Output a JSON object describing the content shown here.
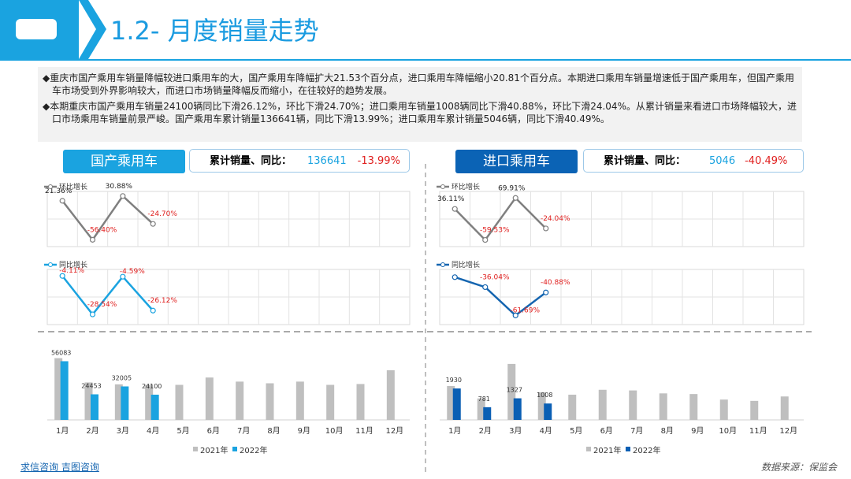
{
  "header": {
    "title": "1.2- 月度销量走势"
  },
  "bullets": [
    "重庆市国产乘用车销量降幅较进口乘用车的大，国产乘用车降幅扩大21.53个百分点，进口乘用车降幅缩小20.81个百分点。本期进口乘用车销量增速低于国产乘用车，但国产乘用车市场受到外界影响较大，而进口市场销量降幅反而缩小，在往较好的趋势发展。",
    "本期重庆市国产乘用车销量24100辆同比下滑26.12%，环比下滑24.70%；进口乘用车销量1008辆同比下滑40.88%，环比下滑24.04%。从累计销量来看进口市场降幅较大，进口市场乘用车销量前景严峻。国产乘用车累计销量136641辆，同比下滑13.99%；进口乘用车累计销量5046辆，同比下滑40.49%。"
  ],
  "panels": [
    {
      "label": "国产乘用车",
      "stat_label": "累计销量、同比：",
      "total": "136641",
      "change": "-13.99%"
    },
    {
      "label": "进口乘用车",
      "stat_label": "累计销量、同比：",
      "total": "5046",
      "change": "-40.49%"
    }
  ],
  "chart_data": [
    {
      "type": "line",
      "ylim": [
        -70,
        40
      ],
      "series": [
        {
          "name": "环比增长",
          "color": "#7f7f7f",
          "values": [
            21.36,
            -56.4,
            30.88,
            -24.7,
            null,
            null,
            null,
            null,
            null,
            null,
            null,
            null
          ],
          "value_labels": [
            "21.36%",
            "-56.40%",
            "30.88%",
            "-24.70%",
            null,
            null,
            null,
            null,
            null,
            null,
            null,
            null
          ]
        }
      ]
    },
    {
      "type": "line",
      "ylim": [
        -35,
        0
      ],
      "series": [
        {
          "name": "同比增长",
          "color": "#1aa3e0",
          "values": [
            -4.11,
            -28.54,
            -4.59,
            -26.12,
            null,
            null,
            null,
            null,
            null,
            null,
            null,
            null
          ],
          "value_labels": [
            "-4.11%",
            "-28.54%",
            "-4.59%",
            "-26.12%",
            null,
            null,
            null,
            null,
            null,
            null,
            null,
            null
          ]
        }
      ]
    },
    {
      "type": "bar",
      "ylim": [
        0,
        70000
      ],
      "categories": [
        "1月",
        "2月",
        "3月",
        "4月",
        "5月",
        "6月",
        "7月",
        "8月",
        "9月",
        "10月",
        "11月",
        "12月"
      ],
      "series": [
        {
          "name": "2021年",
          "color": "#bfbfbf",
          "values": [
            59000,
            35800,
            34000,
            33500,
            33500,
            40500,
            36600,
            35000,
            36600,
            33500,
            34300,
            47500
          ]
        },
        {
          "name": "2022年",
          "color": "#1aa3e0",
          "values": [
            56083,
            24453,
            32005,
            24100,
            null,
            null,
            null,
            null,
            null,
            null,
            null,
            null
          ],
          "labeled": true
        }
      ]
    },
    {
      "type": "line",
      "ylim": [
        -80,
        90
      ],
      "series": [
        {
          "name": "环比增长",
          "color": "#7f7f7f",
          "values": [
            36.11,
            -59.53,
            69.91,
            -24.04,
            null,
            null,
            null,
            null,
            null,
            null,
            null,
            null
          ],
          "value_labels": [
            "36.11%",
            "-59.53%",
            "69.91%",
            "-24.04%",
            null,
            null,
            null,
            null,
            null,
            null,
            null,
            null
          ]
        }
      ]
    },
    {
      "type": "line",
      "ylim": [
        -70,
        -20
      ],
      "series": [
        {
          "name": "同比增长",
          "color": "#1565b0",
          "values": [
            -27,
            -36.04,
            -61.69,
            -40.88,
            null,
            null,
            null,
            null,
            null,
            null,
            null,
            null
          ],
          "value_labels": [
            null,
            "-36.04%",
            "-61.69%",
            "-40.88%",
            null,
            null,
            null,
            null,
            null,
            null,
            null,
            null
          ]
        }
      ]
    },
    {
      "type": "bar",
      "ylim": [
        0,
        4500
      ],
      "categories": [
        "1月",
        "2月",
        "3月",
        "4月",
        "5月",
        "6月",
        "7月",
        "8月",
        "9月",
        "10月",
        "11月",
        "12月"
      ],
      "series": [
        {
          "name": "2021年",
          "color": "#bfbfbf",
          "values": [
            2080,
            1320,
            3440,
            1700,
            1550,
            1850,
            1810,
            1630,
            1590,
            1250,
            1170,
            1440
          ]
        },
        {
          "name": "2022年",
          "color": "#0a5fb4",
          "values": [
            1930,
            781,
            1327,
            1008,
            null,
            null,
            null,
            null,
            null,
            null,
            null,
            null
          ],
          "labeled": true
        }
      ]
    }
  ],
  "footer": {
    "links": [
      "求信咨询",
      "吉图咨询"
    ],
    "source": "数据来源：保监会"
  }
}
